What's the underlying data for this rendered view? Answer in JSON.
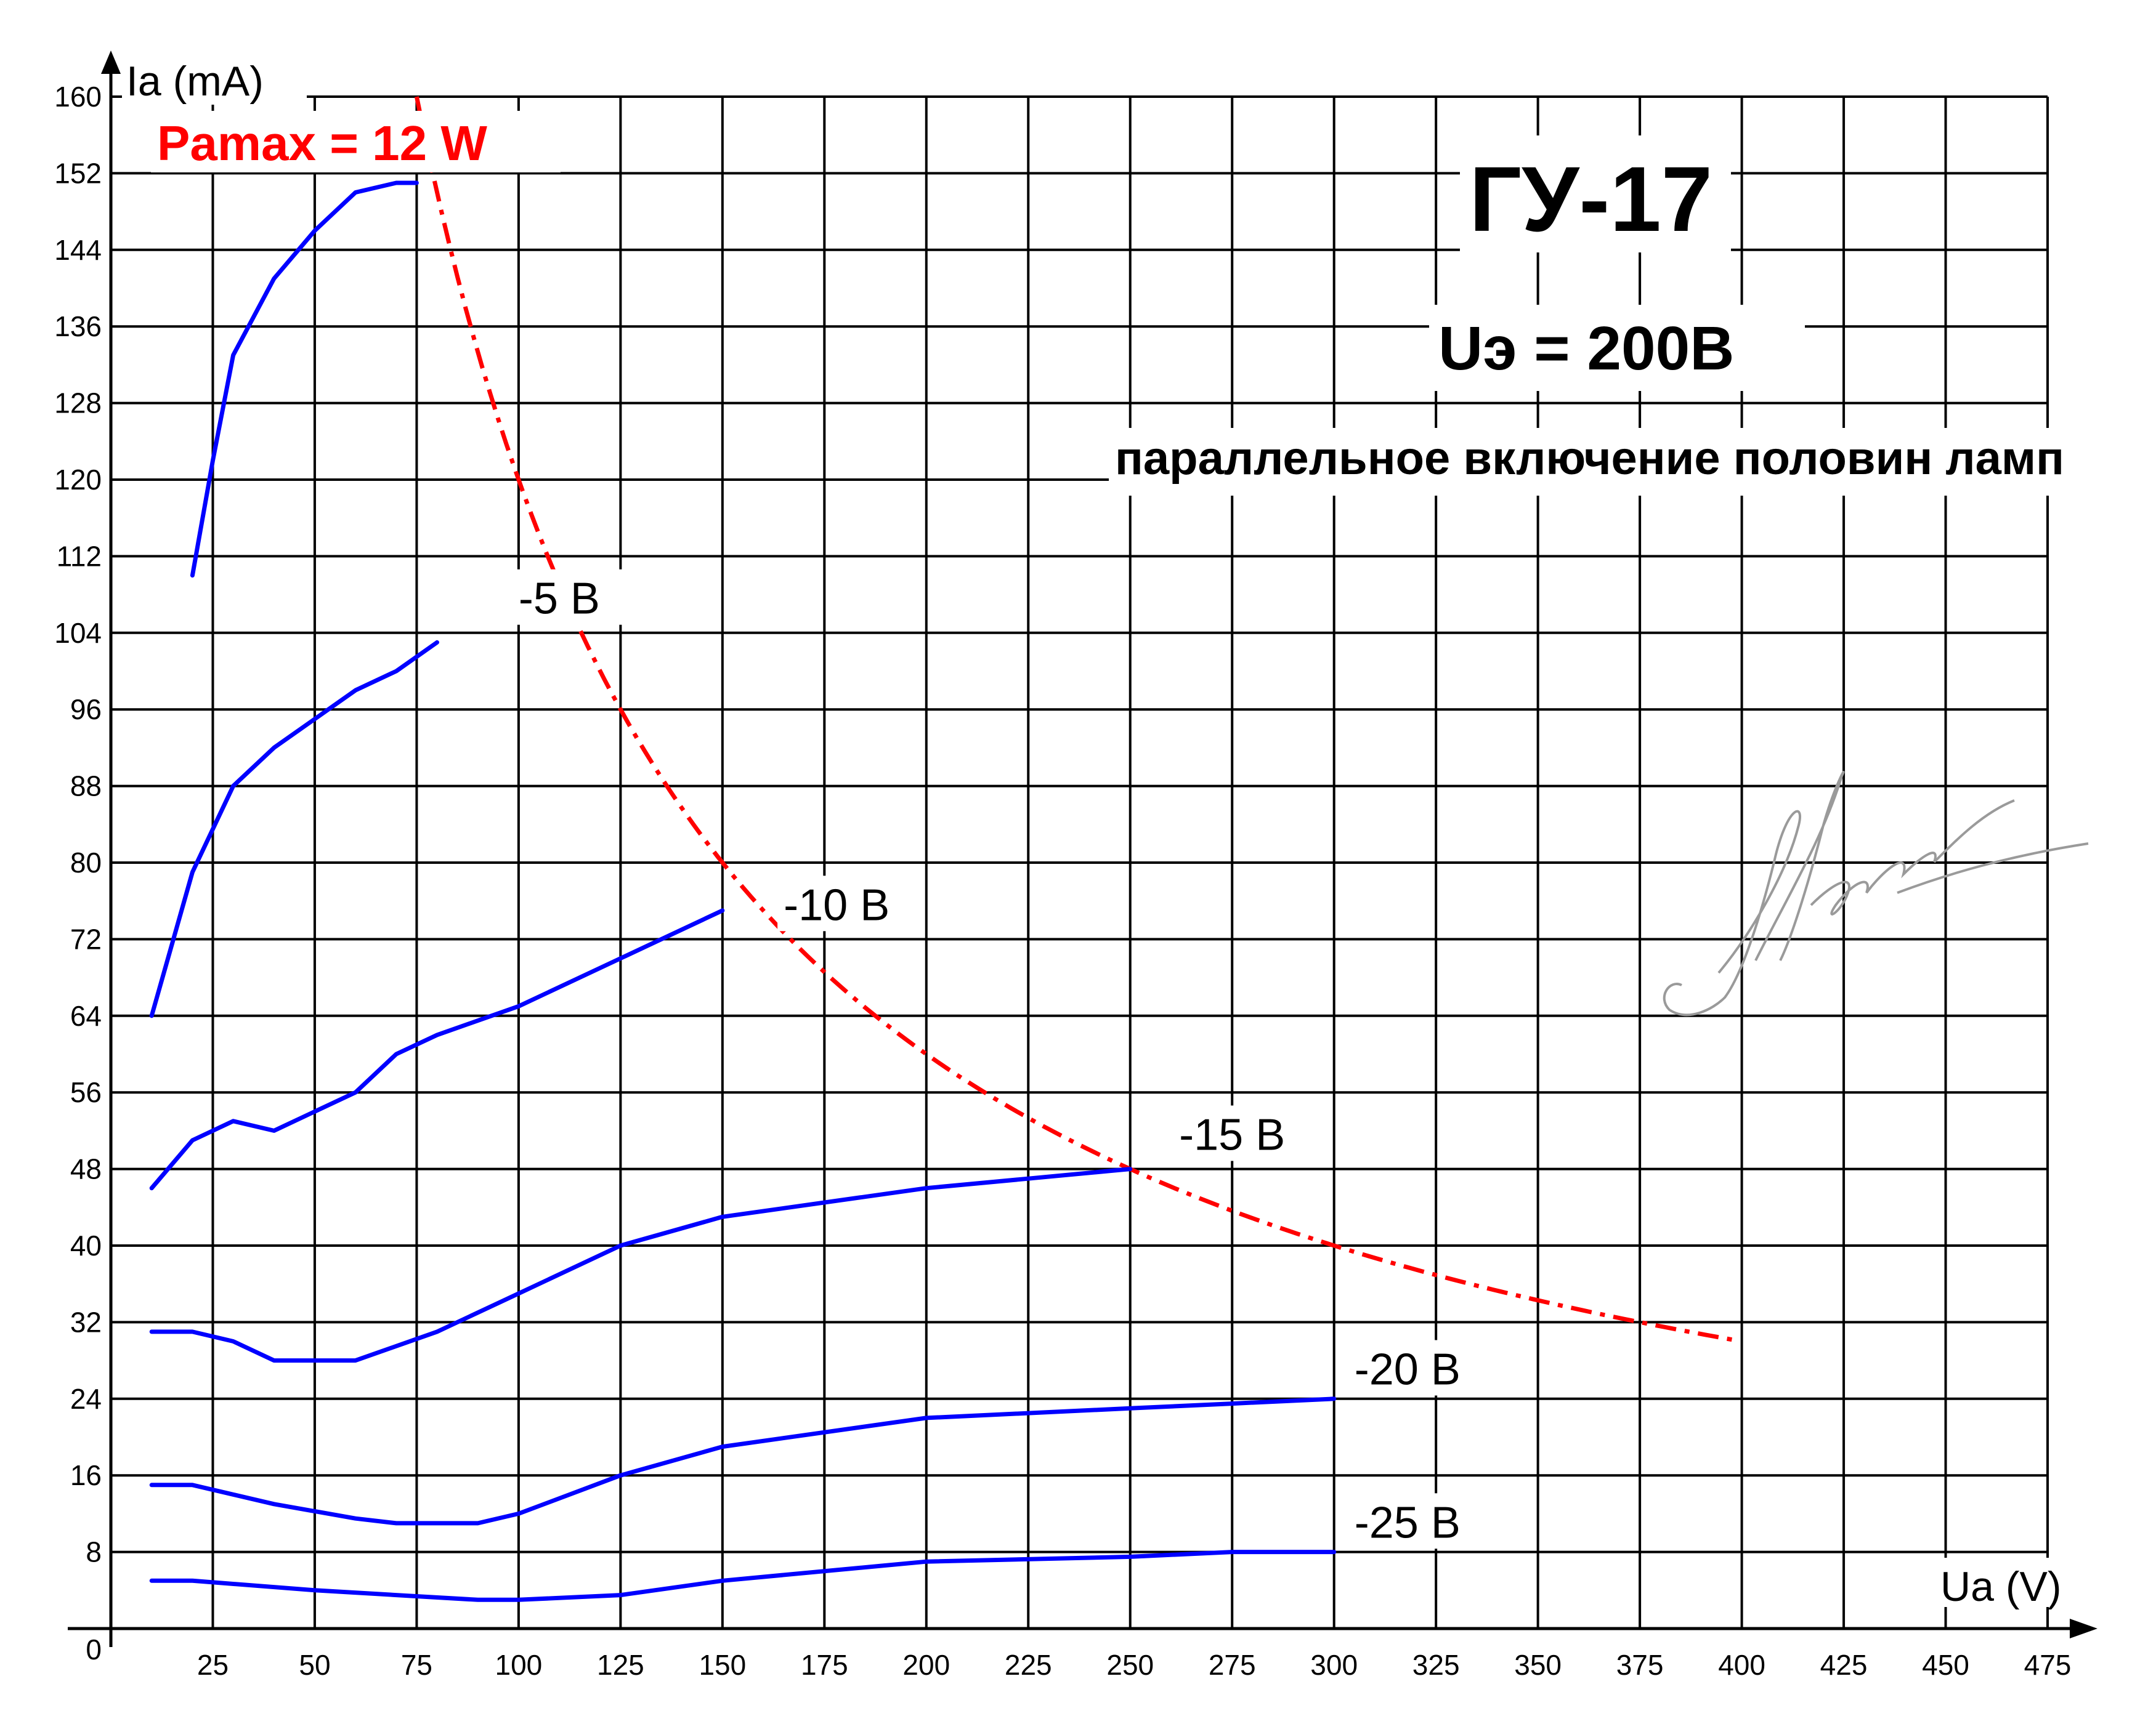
{
  "chart_data": {
    "type": "line",
    "title": "ГУ-17",
    "subtitle": "Uэ = 200В",
    "note": "параллельное включение половин ламп",
    "xlabel": "Ua (V)",
    "ylabel": "Ia (mA)",
    "xlim": [
      0,
      475
    ],
    "ylim": [
      0,
      160
    ],
    "x_ticks": [
      25,
      50,
      75,
      100,
      125,
      150,
      175,
      200,
      225,
      250,
      275,
      300,
      325,
      350,
      375,
      400,
      425,
      450,
      475
    ],
    "y_ticks": [
      8,
      16,
      24,
      32,
      40,
      48,
      56,
      64,
      72,
      80,
      88,
      96,
      104,
      112,
      120,
      128,
      136,
      144,
      152,
      160
    ],
    "x_tick_labels": [
      "25",
      "50",
      "75",
      "100",
      "125",
      "150",
      "175",
      "200",
      "225",
      "250",
      "275",
      "300",
      "325",
      "350",
      "375",
      "400",
      "425",
      "450",
      "475"
    ],
    "y_tick_labels": [
      "8",
      "16",
      "24",
      "32",
      "40",
      "48",
      "56",
      "64",
      "72",
      "80",
      "88",
      "96",
      "104",
      "112",
      "120",
      "128",
      "136",
      "144",
      "152",
      "160"
    ],
    "origin_label": "0",
    "grid": true,
    "series": [
      {
        "name": "",
        "color": "#0000ff",
        "points": [
          [
            20,
            110
          ],
          [
            25,
            122
          ],
          [
            30,
            133
          ],
          [
            40,
            141
          ],
          [
            50,
            146
          ],
          [
            60,
            150
          ],
          [
            70,
            151
          ],
          [
            75,
            151
          ]
        ]
      },
      {
        "name": "-5 B",
        "color": "#0000ff",
        "points": [
          [
            10,
            64
          ],
          [
            20,
            79
          ],
          [
            30,
            88
          ],
          [
            40,
            92
          ],
          [
            50,
            95
          ],
          [
            60,
            98
          ],
          [
            70,
            100
          ],
          [
            80,
            103
          ]
        ]
      },
      {
        "name": "-10 B",
        "color": "#0000ff",
        "points": [
          [
            10,
            46
          ],
          [
            20,
            51
          ],
          [
            30,
            53
          ],
          [
            40,
            52
          ],
          [
            50,
            54
          ],
          [
            60,
            56
          ],
          [
            70,
            60
          ],
          [
            80,
            62
          ],
          [
            100,
            65
          ],
          [
            125,
            70
          ],
          [
            150,
            75
          ]
        ]
      },
      {
        "name": "-15 B",
        "color": "#0000ff",
        "points": [
          [
            10,
            31
          ],
          [
            20,
            31
          ],
          [
            30,
            30
          ],
          [
            40,
            28
          ],
          [
            60,
            28
          ],
          [
            80,
            31
          ],
          [
            100,
            35
          ],
          [
            125,
            40
          ],
          [
            150,
            43
          ],
          [
            200,
            46
          ],
          [
            225,
            47
          ],
          [
            250,
            48
          ]
        ]
      },
      {
        "name": "-20 B",
        "color": "#0000ff",
        "points": [
          [
            10,
            15
          ],
          [
            20,
            15
          ],
          [
            40,
            13
          ],
          [
            60,
            11.5
          ],
          [
            70,
            11
          ],
          [
            90,
            11
          ],
          [
            100,
            12
          ],
          [
            125,
            16
          ],
          [
            150,
            19
          ],
          [
            200,
            22
          ],
          [
            250,
            23
          ],
          [
            275,
            23.5
          ],
          [
            300,
            24
          ]
        ]
      },
      {
        "name": "-25 B",
        "color": "#0000ff",
        "points": [
          [
            10,
            5
          ],
          [
            20,
            5
          ],
          [
            50,
            4
          ],
          [
            70,
            3.5
          ],
          [
            90,
            3
          ],
          [
            100,
            3
          ],
          [
            125,
            3.5
          ],
          [
            150,
            5
          ],
          [
            200,
            7
          ],
          [
            250,
            7.5
          ],
          [
            275,
            8
          ],
          [
            300,
            8
          ]
        ]
      }
    ],
    "pamax": {
      "label": "Pamax = 12 W",
      "power_w": 12,
      "x_range": [
        75,
        400
      ],
      "color": "#ff0000"
    },
    "curve_labels": [
      {
        "text": "-5 B",
        "at": [
          100,
          106
        ]
      },
      {
        "text": "-10 B",
        "at": [
          165,
          74
        ]
      },
      {
        "text": "-15 B",
        "at": [
          262,
          50
        ]
      },
      {
        "text": "-20 B",
        "at": [
          305,
          25.5
        ]
      },
      {
        "text": "-25 B",
        "at": [
          305,
          9.5
        ]
      }
    ]
  }
}
